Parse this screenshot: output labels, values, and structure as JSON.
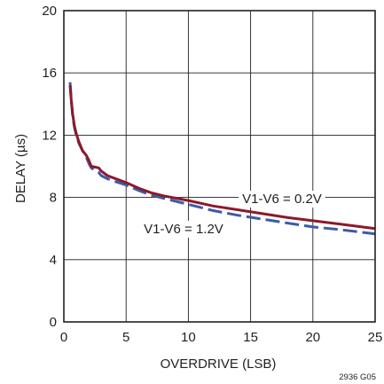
{
  "chart_data": {
    "type": "line",
    "xlabel": "OVERDRIVE (LSB)",
    "ylabel": "DELAY (µs)",
    "xlim": [
      0,
      25
    ],
    "ylim": [
      0,
      20
    ],
    "x_ticks": [
      0,
      5,
      10,
      15,
      20,
      25
    ],
    "y_ticks": [
      0,
      4,
      8,
      12,
      16,
      20
    ],
    "x_tick_labels": [
      "0",
      "5",
      "10",
      "15",
      "20",
      "25"
    ],
    "y_tick_labels": [
      "0",
      "4",
      "8",
      "12",
      "16",
      "20"
    ],
    "grid": true,
    "figure_id": "2936 G05",
    "series": [
      {
        "name": "V1-V6 = 0.2V",
        "color": "#8b1a2b",
        "style": "solid",
        "x": [
          0.5,
          0.6,
          0.7,
          0.85,
          1.0,
          1.2,
          1.5,
          1.8,
          2.0,
          2.2,
          2.5,
          2.8,
          3.0,
          3.5,
          4.0,
          5.0,
          6.0,
          7.0,
          8.0,
          9.0,
          10.0,
          12.0,
          14.0,
          16.0,
          18.0,
          20.0,
          22.0,
          25.0
        ],
        "y": [
          15.2,
          14.2,
          13.4,
          12.6,
          12.1,
          11.6,
          11.0,
          10.7,
          10.4,
          10.0,
          9.95,
          9.9,
          9.7,
          9.4,
          9.25,
          8.95,
          8.6,
          8.3,
          8.1,
          7.95,
          7.8,
          7.45,
          7.2,
          6.95,
          6.7,
          6.5,
          6.3,
          6.0
        ]
      },
      {
        "name": "V1-V6 = 1.2V",
        "color": "#3a5ca8",
        "style": "dashed",
        "x": [
          0.5,
          0.6,
          0.7,
          0.85,
          1.0,
          1.2,
          1.5,
          1.8,
          2.0,
          2.2,
          2.5,
          2.8,
          3.0,
          3.5,
          4.0,
          5.0,
          6.0,
          7.0,
          8.0,
          9.0,
          10.0,
          12.0,
          14.0,
          16.0,
          18.0,
          20.0,
          22.0,
          25.0
        ],
        "y": [
          15.4,
          14.3,
          13.3,
          12.5,
          12.0,
          11.5,
          11.0,
          10.6,
          10.2,
          9.9,
          9.75,
          9.6,
          9.4,
          9.2,
          9.05,
          8.8,
          8.45,
          8.15,
          7.95,
          7.75,
          7.55,
          7.15,
          6.85,
          6.6,
          6.35,
          6.1,
          5.95,
          5.65
        ]
      }
    ],
    "annotations": [
      {
        "text": "V1-V6 = 0.2V",
        "series": 0
      },
      {
        "text": "V1-V6 = 1.2V",
        "series": 1
      }
    ]
  }
}
